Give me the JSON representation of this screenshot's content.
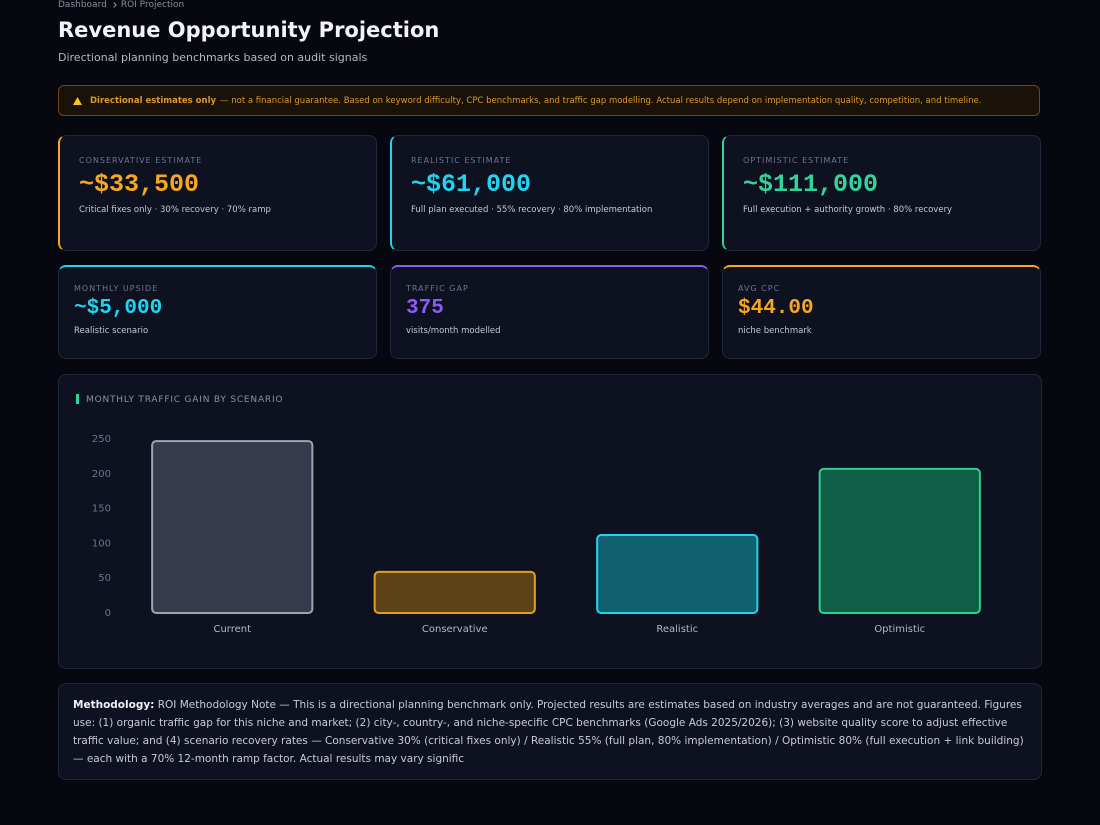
{
  "breadcrumb": [
    "Dashboard",
    "ROI Projection"
  ],
  "header": {
    "title": "Revenue Opportunity Projection",
    "subtitle": "Directional planning benchmarks based on audit signals"
  },
  "notice": {
    "strong": "Directional estimates only",
    "text": "— not a financial guarantee. Based on keyword difficulty, CPC benchmarks, and traffic gap modelling. Actual results depend on implementation quality, competition, and timeline."
  },
  "estimates": [
    {
      "label": "CONSERVATIVE ESTIMATE",
      "value": "~$33,500",
      "note": "Critical fixes only · 30% recovery · 70% ramp",
      "color": "#f5a623"
    },
    {
      "label": "REALISTIC ESTIMATE",
      "value": "~$61,000",
      "note": "Full plan executed · 55% recovery · 80% implementation",
      "color": "#22d3ee"
    },
    {
      "label": "OPTIMISTIC ESTIMATE",
      "value": "~$111,000",
      "note": "Full execution + authority growth · 80% recovery",
      "color": "#34d399"
    }
  ],
  "metrics": [
    {
      "label": "MONTHLY UPSIDE",
      "value": "~$5,000",
      "note": "Realistic scenario",
      "color": "#22d3ee"
    },
    {
      "label": "TRAFFIC GAP",
      "value": "375",
      "note": "visits/month modelled",
      "color": "#8b5cf6"
    },
    {
      "label": "AVG CPC",
      "value": "$44.00",
      "note": "niche benchmark",
      "color": "#f5a623"
    }
  ],
  "chart_data": {
    "type": "bar",
    "title": "MONTHLY TRAFFIC GAIN BY SCENARIO",
    "categories": [
      "Current",
      "Conservative",
      "Realistic",
      "Optimistic"
    ],
    "values": [
      247,
      59,
      112,
      207
    ],
    "colors": [
      "#363a4d",
      "#5c4317",
      "#11606e",
      "#0f5e45"
    ],
    "border_colors": [
      "#a0a3b0",
      "#e59e1c",
      "#22d3ee",
      "#2ed18d"
    ],
    "ylim": [
      0,
      250
    ],
    "yticks": [
      0,
      50,
      100,
      150,
      200,
      250
    ],
    "grid": false
  },
  "methodology": {
    "label": "Methodology:",
    "text": "ROI Methodology Note — This is a directional planning benchmark only. Projected results are estimates based on industry averages and are not guaranteed. Figures use: (1) organic traffic gap for this niche and market; (2) city-, country-, and niche-specific CPC benchmarks (Google Ads 2025/2026); (3) website quality score to adjust effective traffic value; and (4) scenario recovery rates — Conservative 30% (critical fixes only) / Realistic 55% (full plan, 80% implementation) / Optimistic 80% (full execution + link building) — each with a 70% 12-month ramp factor. Actual results may vary signific"
  }
}
